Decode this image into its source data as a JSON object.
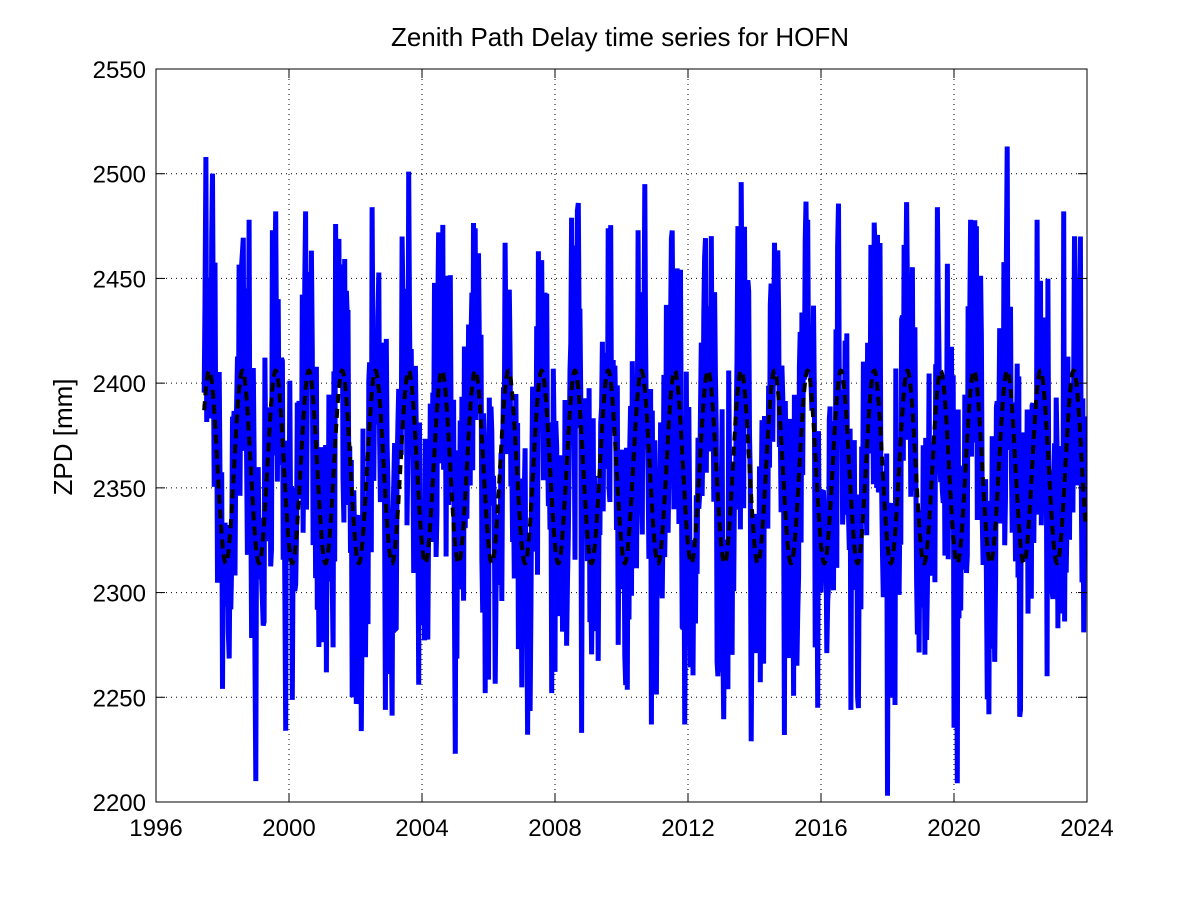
{
  "chart_data": {
    "type": "line",
    "title": "Zenith Path Delay time series for HOFN",
    "xlabel": "",
    "ylabel": "ZPD [mm]",
    "xlim": [
      1996,
      2024
    ],
    "ylim": [
      2200,
      2550
    ],
    "xticks": [
      "1996",
      "2000",
      "2004",
      "2008",
      "2012",
      "2016",
      "2020",
      "2024"
    ],
    "yticks": [
      "2200",
      "2250",
      "2300",
      "2350",
      "2400",
      "2450",
      "2500",
      "2550"
    ],
    "grid": true,
    "grid_style": "dotted",
    "legend": "none",
    "series": [
      {
        "style": "solid",
        "color": "#0000ff",
        "description_type": "observed ZPD (daily), plotted as thick blue line",
        "start": 1997.45,
        "end": 2023.95,
        "peaks": [
          [
            1997.5,
            2508
          ],
          [
            1997.7,
            2500
          ],
          [
            1998.0,
            2452
          ],
          [
            1998.6,
            2463
          ],
          [
            1998.8,
            2478
          ],
          [
            1999.5,
            2473
          ],
          [
            1999.6,
            2482
          ],
          [
            2000.5,
            2482
          ],
          [
            2001.4,
            2476
          ],
          [
            2002.5,
            2484
          ],
          [
            2003.4,
            2470
          ],
          [
            2003.6,
            2501
          ],
          [
            2004.5,
            2472
          ],
          [
            2005.4,
            2428
          ],
          [
            2005.6,
            2474
          ],
          [
            2006.5,
            2467
          ],
          [
            2007.5,
            2463
          ],
          [
            2008.5,
            2479
          ],
          [
            2009.6,
            2474
          ],
          [
            2010.5,
            2473
          ],
          [
            2010.7,
            2495
          ],
          [
            2011.5,
            2469
          ],
          [
            2012.5,
            2460
          ],
          [
            2013.5,
            2475
          ],
          [
            2013.6,
            2496
          ],
          [
            2014.6,
            2467
          ],
          [
            2015.6,
            2478
          ],
          [
            2016.5,
            2465
          ],
          [
            2017.5,
            2466
          ],
          [
            2018.5,
            2466
          ],
          [
            2019.5,
            2484
          ],
          [
            2020.5,
            2478
          ],
          [
            2021.6,
            2513
          ],
          [
            2022.5,
            2478
          ],
          [
            2023.3,
            2482
          ],
          [
            2023.8,
            2470
          ]
        ],
        "troughs": [
          [
            1998.0,
            2254
          ],
          [
            1999.0,
            2210
          ],
          [
            1999.9,
            2234
          ],
          [
            2000.9,
            2274
          ],
          [
            2001.9,
            2250
          ],
          [
            2002.9,
            2244
          ],
          [
            2003.9,
            2256
          ],
          [
            2005.0,
            2223
          ],
          [
            2005.9,
            2252
          ],
          [
            2006.9,
            2273
          ],
          [
            2007.9,
            2252
          ],
          [
            2008.8,
            2233
          ],
          [
            2009.9,
            2275
          ],
          [
            2010.9,
            2237
          ],
          [
            2011.9,
            2237
          ],
          [
            2012.9,
            2260
          ],
          [
            2013.9,
            2229
          ],
          [
            2014.9,
            2232
          ],
          [
            2015.9,
            2245
          ],
          [
            2016.9,
            2244
          ],
          [
            2018.0,
            2203
          ],
          [
            2018.9,
            2280
          ],
          [
            2020.1,
            2209
          ],
          [
            2021.0,
            2249
          ],
          [
            2022.0,
            2244
          ],
          [
            2022.8,
            2260
          ],
          [
            2023.9,
            2281
          ]
        ]
      },
      {
        "style": "dashed",
        "color": "#000000",
        "description_type": "seasonal model fit, plotted as thick black dashed line",
        "start": 1997.45,
        "end": 2023.95,
        "mean": 2360,
        "amplitude": 46,
        "period_years": 1.0,
        "peak_phase": 0.6
      }
    ]
  }
}
